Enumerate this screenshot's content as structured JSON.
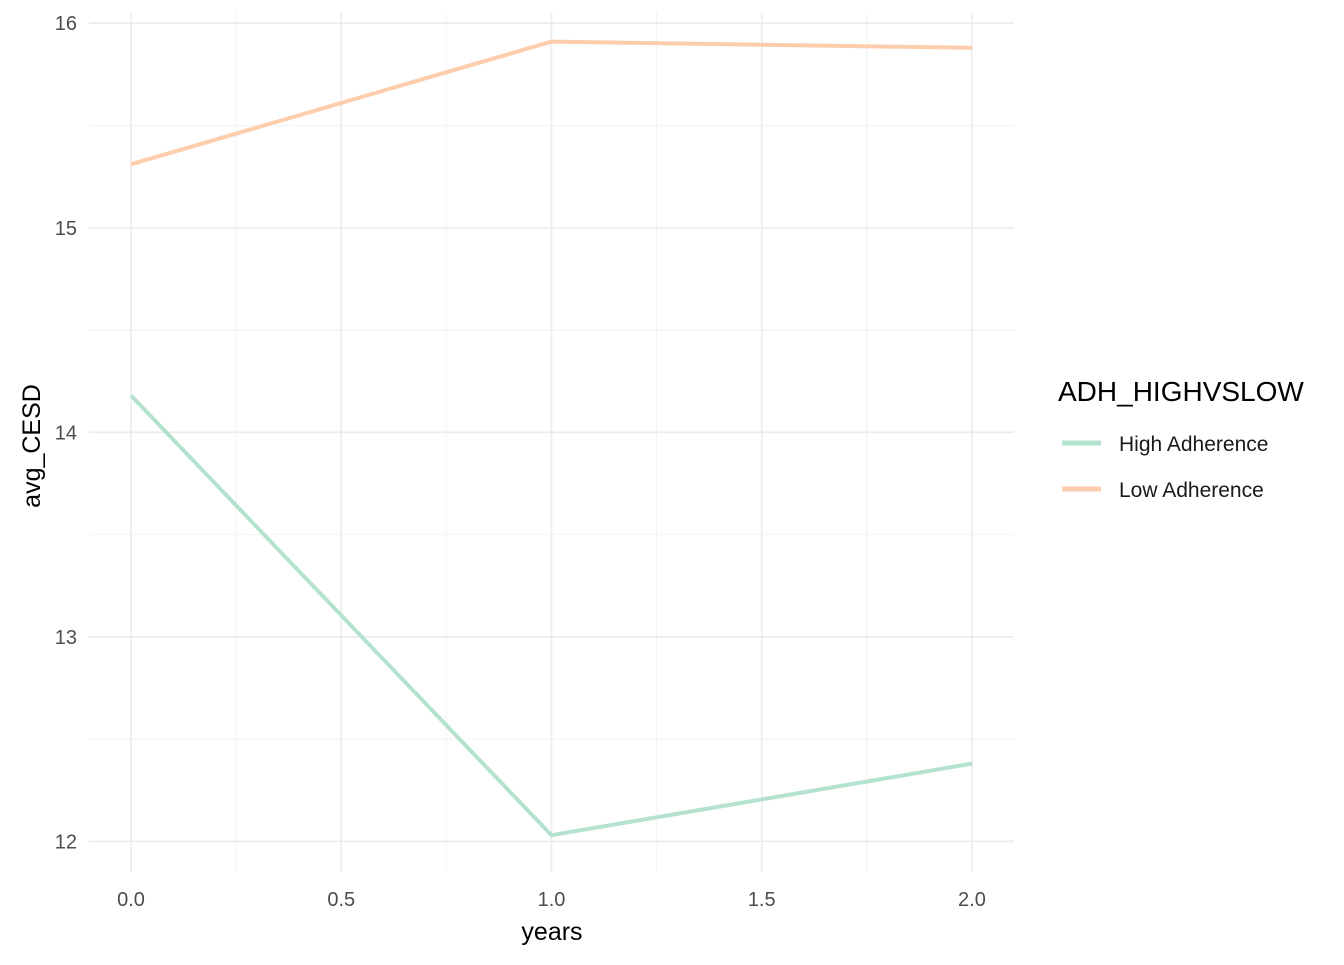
{
  "chart_data": {
    "type": "line",
    "xlabel": "years",
    "ylabel": "avg_CESD",
    "xlim": [
      -0.1,
      2.1
    ],
    "ylim": [
      11.85,
      16.05
    ],
    "x_ticks": [
      0.0,
      0.5,
      1.0,
      1.5,
      2.0
    ],
    "x_tick_labels": [
      "0.0",
      "0.5",
      "1.0",
      "1.5",
      "2.0"
    ],
    "y_ticks": [
      12,
      13,
      14,
      15,
      16
    ],
    "y_tick_labels": [
      "12",
      "13",
      "14",
      "15",
      "16"
    ],
    "grid": true,
    "legend": {
      "title": "ADH_HIGHVSLOW",
      "position": "right"
    },
    "series": [
      {
        "name": "High Adherence",
        "color": "#b3e2cd",
        "x": [
          0,
          1,
          2
        ],
        "y": [
          14.18,
          12.03,
          12.38
        ]
      },
      {
        "name": "Low Adherence",
        "color": "#fdcdac",
        "x": [
          0,
          1,
          2
        ],
        "y": [
          15.31,
          15.91,
          15.88
        ]
      }
    ]
  }
}
